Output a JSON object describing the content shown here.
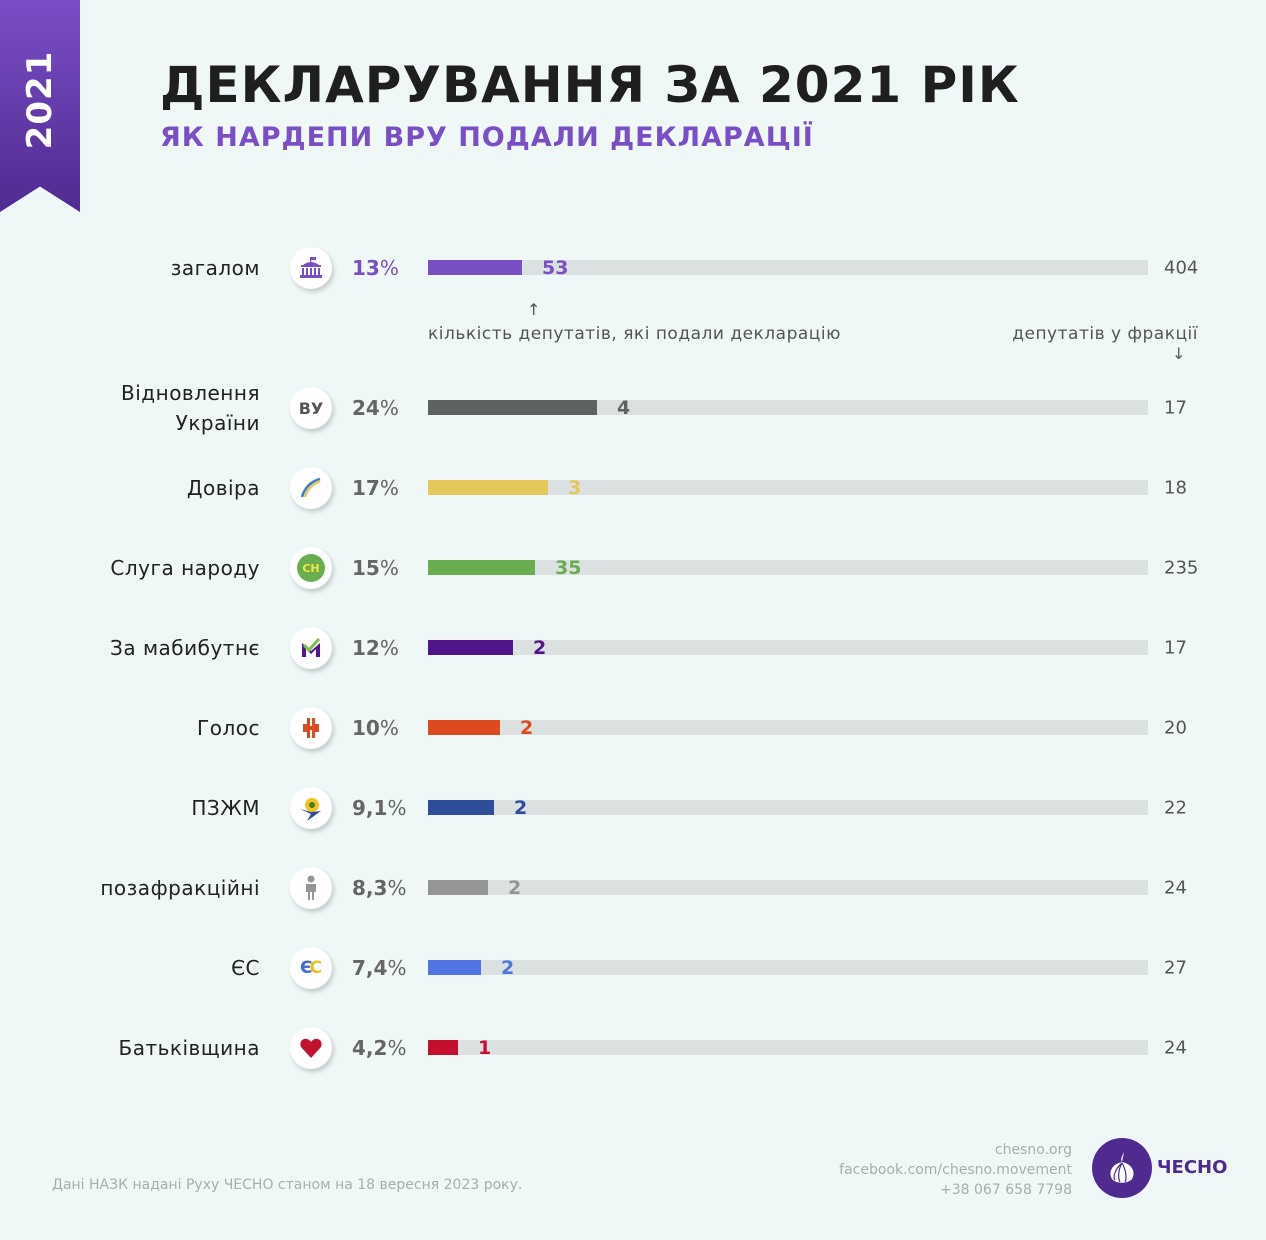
{
  "ribbon": {
    "year": "2021"
  },
  "header": {
    "title": "ДЕКЛАРУВАННЯ ЗА 2021 РІК",
    "subtitle": "ЯК НАРДЕПИ ВРУ ПОДАЛИ ДЕКЛАРАЦІЇ"
  },
  "notes": {
    "submitted_label": "кількість депутатів, які подали декларацію",
    "submitted_arrow": "↑",
    "faction_label": "депутатів у фракції",
    "faction_arrow": "↓"
  },
  "rows": [
    {
      "label": "загалом",
      "icon": "parliament-icon",
      "pct": "13",
      "count": "53",
      "total": "404",
      "color": "#7b4fc4",
      "pct_color": "#7b4fc4",
      "fill_pct": 13.1
    },
    {
      "label": "Відновлення\nУкраїни",
      "icon_text": "ВУ",
      "icon": "vu-logo-icon",
      "pct": "24",
      "count": "4",
      "total": "17",
      "color": "#5f6263",
      "fill_pct": 23.5
    },
    {
      "label": "Довіра",
      "icon": "dovira-logo-icon",
      "pct": "17",
      "count": "3",
      "total": "18",
      "color": "#e5c85a",
      "fill_pct": 16.7
    },
    {
      "label": "Слуга народу",
      "icon_text": "СН",
      "icon": "sluha-narodu-logo-icon",
      "pct": "15",
      "count": "35",
      "total": "235",
      "color": "#6aad4e",
      "fill_pct": 14.9
    },
    {
      "label": "За мабибутнє",
      "icon": "za-maibutnie-logo-icon",
      "pct": "12",
      "count": "2",
      "total": "17",
      "color": "#51158c",
      "fill_pct": 11.8
    },
    {
      "label": "Голос",
      "icon": "holos-logo-icon",
      "pct": "10",
      "count": "2",
      "total": "20",
      "color": "#de4a1f",
      "fill_pct": 10
    },
    {
      "label": "ПЗЖМ",
      "icon": "pzzhm-logo-icon",
      "pct": "9,1",
      "count": "2",
      "total": "22",
      "color": "#2e4e9a",
      "fill_pct": 9.1
    },
    {
      "label": "позафракційні",
      "icon": "person-icon",
      "pct": "8,3",
      "count": "2",
      "total": "24",
      "color": "#959595",
      "fill_pct": 8.3
    },
    {
      "label": "ЄС",
      "icon_text": "ЄС",
      "icon": "es-logo-icon",
      "pct": "7,4",
      "count": "2",
      "total": "27",
      "color": "#5174e3",
      "fill_pct": 7.4
    },
    {
      "label": "Батьківщина",
      "icon": "heart-icon",
      "pct": "4,2",
      "count": "1",
      "total": "24",
      "color": "#c4102e",
      "fill_pct": 4.2
    }
  ],
  "footer": {
    "source": "Дані НАЗК надані Руху ЧЕСНО станом на 18 вересня 2023 року.",
    "site": "chesno.org",
    "facebook": "facebook.com/chesno.movement",
    "phone": "+38 067 658 7798",
    "logo_text": "ЧЕСНО"
  },
  "chart_data": {
    "type": "bar",
    "orientation": "horizontal",
    "title": "ДЕКЛАРУВАННЯ ЗА 2021 РІК",
    "subtitle": "ЯК НАРДЕПИ ВРУ ПОДАЛИ ДЕКЛАРАЦІЇ",
    "categories": [
      "загалом",
      "Відновлення України",
      "Довіра",
      "Слуга народу",
      "За мабибутнє",
      "Голос",
      "ПЗЖМ",
      "позафракційні",
      "ЄС",
      "Батьківщина"
    ],
    "series": [
      {
        "name": "кількість депутатів, які подали декларацію",
        "values": [
          53,
          4,
          3,
          35,
          2,
          2,
          2,
          2,
          2,
          1
        ]
      },
      {
        "name": "депутатів у фракції",
        "values": [
          404,
          17,
          18,
          235,
          17,
          20,
          22,
          24,
          27,
          24
        ]
      },
      {
        "name": "percent",
        "values": [
          13,
          24,
          17,
          15,
          12,
          10,
          9.1,
          8.3,
          7.4,
          4.2
        ]
      }
    ],
    "colors": [
      "#7b4fc4",
      "#5f6263",
      "#e5c85a",
      "#6aad4e",
      "#51158c",
      "#de4a1f",
      "#2e4e9a",
      "#959595",
      "#5174e3",
      "#c4102e"
    ],
    "xlabel": "",
    "ylabel": "",
    "xlim": [
      0,
      100
    ],
    "grid": false,
    "legend": "none"
  }
}
